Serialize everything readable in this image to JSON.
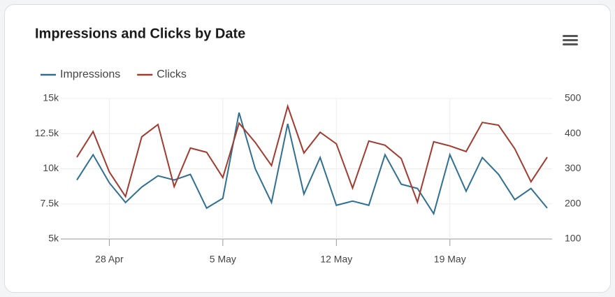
{
  "chart_data": {
    "type": "line",
    "title": "Impressions and Clicks by Date",
    "categories": [
      null,
      null,
      "28 Apr",
      null,
      null,
      null,
      null,
      null,
      null,
      "5 May",
      null,
      null,
      null,
      null,
      null,
      null,
      "12 May",
      null,
      null,
      null,
      null,
      null,
      null,
      "19 May",
      null,
      null,
      null,
      null,
      null,
      null
    ],
    "series": [
      {
        "name": "Impressions",
        "color": "#2f7092",
        "values": [
          9200,
          11000,
          9000,
          7600,
          8700,
          9500,
          9200,
          9600,
          7200,
          7900,
          14000,
          10000,
          7600,
          13200,
          8200,
          10800,
          7400,
          7700,
          7400,
          11000,
          8900,
          8600,
          6800,
          11000,
          8400,
          10800,
          9600,
          7800,
          8600,
          7200
        ]
      },
      {
        "name": "Clicks",
        "color": "#a23b2f",
        "axis": "y2",
        "values": [
          333,
          406,
          291,
          221,
          391,
          426,
          249,
          359,
          347,
          275,
          430,
          375,
          309,
          478,
          345,
          404,
          371,
          245,
          379,
          367,
          329,
          205,
          377,
          365,
          349,
          432,
          424,
          357,
          263,
          333
        ]
      }
    ],
    "ylim": [
      5000,
      15000
    ],
    "yticks": [
      {
        "value": 5000,
        "label": "5k"
      },
      {
        "value": 7500,
        "label": "7.5k"
      },
      {
        "value": 10000,
        "label": "10k"
      },
      {
        "value": 12500,
        "label": "12.5k"
      },
      {
        "value": 15000,
        "label": "15k"
      }
    ],
    "y2lim": [
      100,
      500
    ],
    "y2ticks": [
      100,
      200,
      300,
      400,
      500
    ],
    "grid": true,
    "legend": "top-left"
  }
}
